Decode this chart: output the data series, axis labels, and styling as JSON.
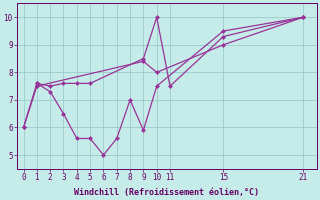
{
  "xlabel": "Windchill (Refroidissement éolien,°C)",
  "bg_color": "#c5ece8",
  "line_color": "#993399",
  "grid_color": "#99cccc",
  "axis_color": "#660066",
  "text_color": "#660066",
  "xlim": [
    -0.5,
    22
  ],
  "ylim": [
    4.5,
    10.5
  ],
  "xticks": [
    0,
    1,
    2,
    3,
    4,
    5,
    6,
    7,
    8,
    9,
    10,
    11,
    15,
    21
  ],
  "yticks": [
    5,
    6,
    7,
    8,
    9,
    10
  ],
  "series1_x": [
    0,
    1,
    2,
    3,
    4,
    5,
    6,
    7,
    8,
    9,
    10,
    15,
    21
  ],
  "series1_y": [
    6.0,
    7.6,
    7.3,
    6.5,
    5.6,
    5.6,
    5.0,
    5.6,
    7.0,
    5.9,
    7.5,
    9.5,
    10.0
  ],
  "series2_x": [
    1,
    2,
    3,
    4,
    5,
    9,
    10,
    11,
    15,
    21
  ],
  "series2_y": [
    7.6,
    7.5,
    7.6,
    7.6,
    7.6,
    8.5,
    10.0,
    7.5,
    9.3,
    10.0
  ],
  "series3_x": [
    0,
    1,
    9,
    10,
    15,
    21
  ],
  "series3_y": [
    6.0,
    7.5,
    8.4,
    8.0,
    9.0,
    10.0
  ]
}
